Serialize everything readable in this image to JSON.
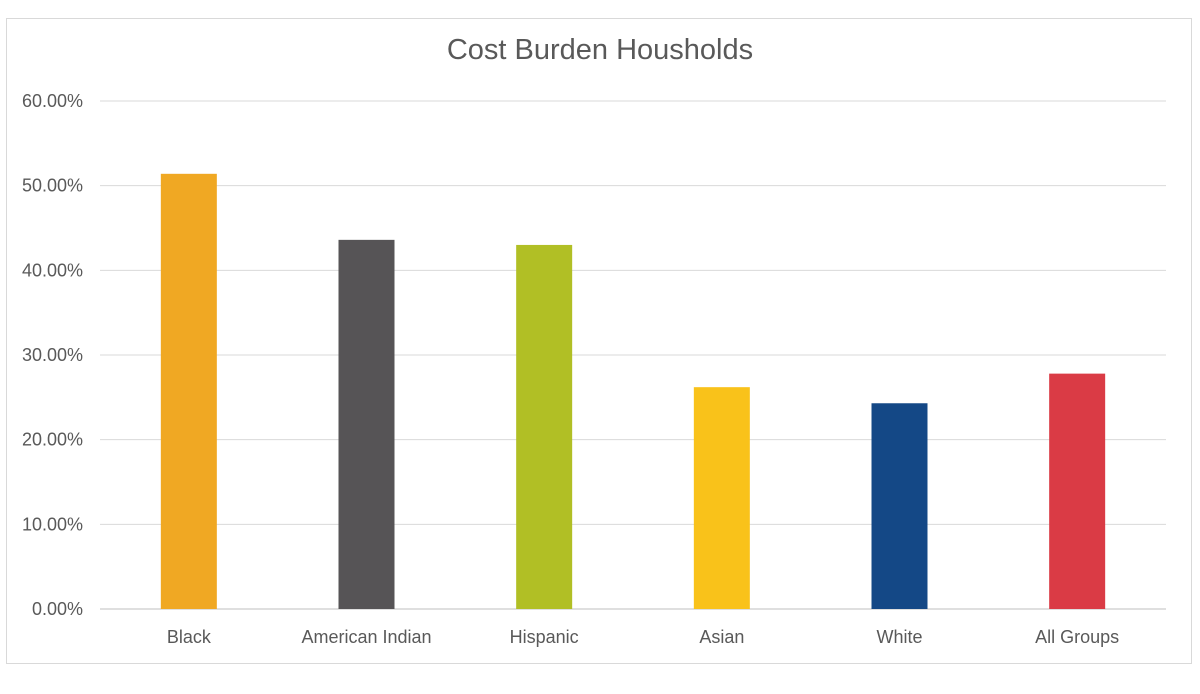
{
  "chart_data": {
    "type": "bar",
    "title": "Cost Burden Housholds",
    "xlabel": "",
    "ylabel": "",
    "categories": [
      "Black",
      "American Indian",
      "Hispanic",
      "Asian",
      "White",
      "All Groups"
    ],
    "values": [
      51.4,
      43.6,
      43.0,
      26.2,
      24.3,
      27.8
    ],
    "colors": [
      "#F0A823",
      "#565456",
      "#B1BF25",
      "#F9C21A",
      "#144886",
      "#DA3B45"
    ],
    "ylim": [
      0,
      60
    ],
    "yticks": [
      0,
      10,
      20,
      30,
      40,
      50,
      60
    ],
    "ytick_labels": [
      "0.00%",
      "10.00%",
      "20.00%",
      "30.00%",
      "40.00%",
      "50.00%",
      "60.00%"
    ],
    "grid": true,
    "legend": "none"
  }
}
